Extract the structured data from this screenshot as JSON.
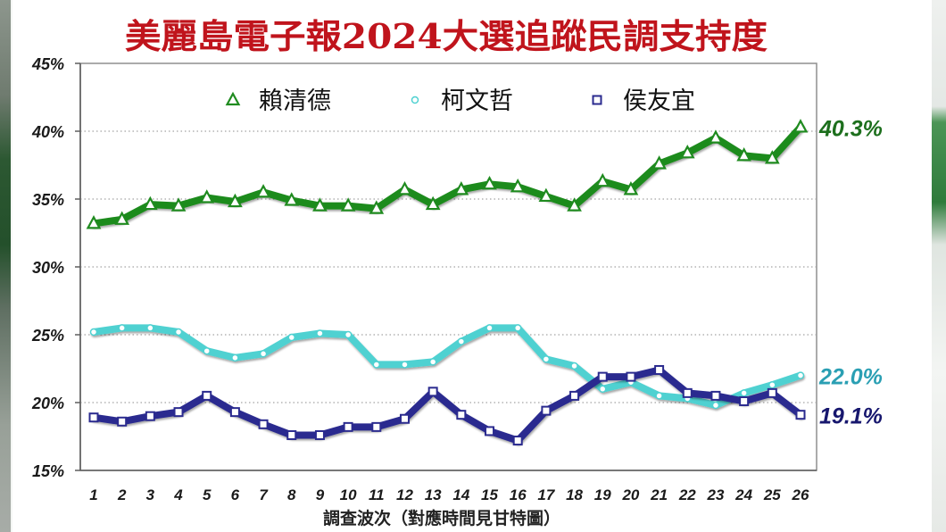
{
  "colors": {
    "title": "#c0141c",
    "grid": "#a3a3a3",
    "axis": "#5e5e5e",
    "frame": "#8f8f8f"
  },
  "chart_data": {
    "type": "line",
    "title": "美麗島電子報2024大選追蹤民調支持度",
    "xlabel": "調查波次（對應時間見甘特圖）",
    "x": [
      1,
      2,
      3,
      4,
      5,
      6,
      7,
      8,
      9,
      10,
      11,
      12,
      13,
      14,
      15,
      16,
      17,
      18,
      19,
      20,
      21,
      22,
      23,
      24,
      25,
      26
    ],
    "ylim": [
      15,
      45
    ],
    "y_ticks": [
      15,
      20,
      25,
      30,
      35,
      40,
      45
    ],
    "y_tick_labels": [
      "15%",
      "20%",
      "25%",
      "30%",
      "35%",
      "40%",
      "45%"
    ],
    "grid": true,
    "legend": "top",
    "series": [
      {
        "name": "賴清德",
        "color": "#1f8b1f",
        "label_color": "#1d6f1d",
        "marker": "triangle",
        "values": [
          33.2,
          33.5,
          34.6,
          34.5,
          35.1,
          34.8,
          35.5,
          34.9,
          34.5,
          34.5,
          34.3,
          35.7,
          34.6,
          35.7,
          36.1,
          35.9,
          35.2,
          34.5,
          36.3,
          35.7,
          37.6,
          38.4,
          39.5,
          38.2,
          38.0,
          40.3
        ],
        "end_label": "40.3%"
      },
      {
        "name": "柯文哲",
        "color": "#4fd1d1",
        "label_color": "#2a9fb3",
        "marker": "circle",
        "values": [
          25.2,
          25.5,
          25.5,
          25.2,
          23.8,
          23.3,
          23.6,
          24.8,
          25.1,
          25.0,
          22.8,
          22.8,
          23.0,
          24.5,
          25.5,
          25.5,
          23.2,
          22.7,
          21.0,
          21.5,
          20.5,
          20.3,
          19.8,
          20.7,
          21.3,
          22.0
        ],
        "end_label": "22.0%"
      },
      {
        "name": "侯友宜",
        "color": "#2b2b8f",
        "label_color": "#17176e",
        "marker": "square",
        "values": [
          18.9,
          18.6,
          19.0,
          19.3,
          20.5,
          19.3,
          18.4,
          17.6,
          17.6,
          18.2,
          18.2,
          18.8,
          20.8,
          19.1,
          17.9,
          17.2,
          19.4,
          20.5,
          21.9,
          21.9,
          22.4,
          20.7,
          20.5,
          20.1,
          20.7,
          19.1
        ],
        "end_label": "19.1%"
      }
    ]
  }
}
